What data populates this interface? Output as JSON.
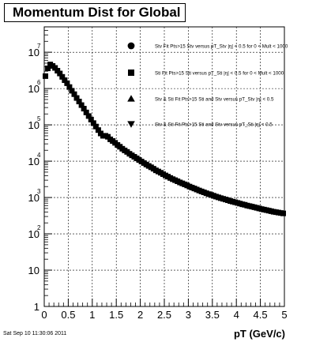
{
  "title": "Momentum Dist for Global",
  "timestamp": "Sat Sep 10 11:30:06 2011",
  "chart_data": {
    "type": "scatter",
    "xlabel": "pT (GeV/c)",
    "ylabel": "",
    "xlim": [
      0,
      5
    ],
    "ylim": [
      1,
      50000000
    ],
    "yscale": "log",
    "grid": true,
    "legend_position": "top-right",
    "x_ticks": [
      "0",
      "0.5",
      "1",
      "1.5",
      "2",
      "2.5",
      "3",
      "3.5",
      "4",
      "4.5",
      "5"
    ],
    "y_ticks": [
      {
        "base": "1",
        "exp": ""
      },
      {
        "base": "10",
        "exp": ""
      },
      {
        "base": "10",
        "exp": "2"
      },
      {
        "base": "10",
        "exp": "3"
      },
      {
        "base": "10",
        "exp": "4"
      },
      {
        "base": "10",
        "exp": "5"
      },
      {
        "base": "10",
        "exp": "6"
      },
      {
        "base": "10",
        "exp": "7"
      }
    ],
    "legend": [
      {
        "marker": "circle",
        "label": "Stv Fit Pts>15 Stv versus pT_Stv |η| < 0.5 for 0 < Mult < 1000"
      },
      {
        "marker": "square",
        "label": "Sti Fit Pts>15 Sti versus pT_Sti |η| < 0.5 for 0 < Mult < 1000"
      },
      {
        "marker": "triangle-up",
        "label": "Stv & Sti Fit Pts>15 Sti and Stv versus pT_Stv |η| < 0.5"
      },
      {
        "marker": "triangle-down",
        "label": "Stv & Sti Fit Pts>15 Sti and Stv versus pT_Sti |η| < 0.5"
      }
    ],
    "series": [
      {
        "marker": "square",
        "color": "#000000",
        "x": [
          0.025,
          0.075,
          0.125,
          0.175,
          0.225,
          0.275,
          0.325,
          0.375,
          0.425,
          0.475,
          0.525,
          0.575,
          0.625,
          0.675,
          0.725,
          0.775,
          0.825,
          0.875,
          0.925,
          0.975,
          1.025,
          1.075,
          1.125,
          1.175,
          1.225,
          1.275,
          1.325,
          1.375,
          1.425,
          1.475,
          1.525,
          1.575,
          1.625,
          1.675,
          1.725,
          1.775,
          1.825,
          1.875,
          1.925,
          1.975,
          2.025,
          2.075,
          2.125,
          2.175,
          2.225,
          2.275,
          2.325,
          2.375,
          2.425,
          2.475,
          2.525,
          2.575,
          2.625,
          2.675,
          2.725,
          2.775,
          2.825,
          2.875,
          2.925,
          2.975,
          3.025,
          3.075,
          3.125,
          3.175,
          3.225,
          3.275,
          3.325,
          3.375,
          3.425,
          3.475,
          3.525,
          3.575,
          3.625,
          3.675,
          3.725,
          3.775,
          3.825,
          3.875,
          3.925,
          3.975,
          4.025,
          4.075,
          4.125,
          4.175,
          4.225,
          4.275,
          4.325,
          4.375,
          4.425,
          4.475,
          4.525,
          4.575,
          4.625,
          4.675,
          4.725,
          4.775,
          4.825,
          4.875,
          4.925,
          4.975
        ],
        "y": [
          2200000,
          3600000,
          4600000,
          4200000,
          3700000,
          3100000,
          2600000,
          2100000,
          1700000,
          1400000,
          1100000,
          870000,
          700000,
          550000,
          440000,
          350000,
          280000,
          220000,
          175000,
          140000,
          112000,
          90000,
          72000,
          58000,
          50000,
          50000,
          47000,
          40000,
          36000,
          32000,
          28000,
          25000,
          22000,
          19800,
          18000,
          16000,
          14500,
          13200,
          12000,
          10800,
          9800,
          8900,
          8100,
          7400,
          6800,
          6200,
          5600,
          5200,
          4800,
          4400,
          4050,
          3750,
          3450,
          3200,
          3000,
          2800,
          2600,
          2450,
          2300,
          2150,
          2000,
          1880,
          1770,
          1660,
          1560,
          1470,
          1390,
          1310,
          1240,
          1180,
          1120,
          1060,
          1010,
          960,
          920,
          880,
          840,
          800,
          770,
          740,
          710,
          680,
          650,
          630,
          600,
          580,
          560,
          540,
          520,
          500,
          480,
          465,
          450,
          435,
          420,
          405,
          395,
          385,
          375,
          365
        ]
      }
    ]
  }
}
